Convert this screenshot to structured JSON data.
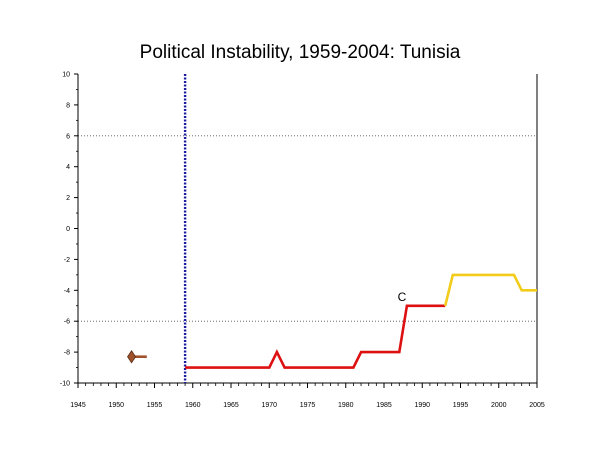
{
  "chart_data": {
    "type": "line",
    "title": "Political Instability, 1959-2004: Tunisia",
    "xlabel": "",
    "ylabel": "",
    "xlim": [
      1945,
      2005
    ],
    "ylim": [
      -10,
      10
    ],
    "x_ticks": [
      1945,
      1950,
      1955,
      1960,
      1965,
      1970,
      1975,
      1980,
      1985,
      1990,
      1995,
      2000,
      2005
    ],
    "y_ticks": [
      -10,
      -8,
      -6,
      -4,
      -2,
      0,
      2,
      4,
      6,
      8,
      10
    ],
    "reference_lines": [
      6,
      -6
    ],
    "vertical_marker": {
      "x": 1959
    },
    "series": [
      {
        "color": "#a0522d",
        "points": [
          [
            1952,
            -8.3
          ],
          [
            1954,
            -8.3
          ]
        ]
      },
      {
        "color": "#dd1111",
        "points": [
          [
            1959,
            -9
          ],
          [
            1970,
            -9
          ],
          [
            1971,
            -8
          ],
          [
            1972,
            -9
          ],
          [
            1981,
            -9
          ],
          [
            1982,
            -8
          ],
          [
            1987,
            -8
          ],
          [
            1988,
            -5
          ],
          [
            1993,
            -5
          ]
        ]
      },
      {
        "color": "#f2cc1a",
        "points": [
          [
            1993,
            -5
          ],
          [
            1994,
            -3
          ],
          [
            2002,
            -3
          ],
          [
            2003,
            -4
          ],
          [
            2005,
            -4
          ]
        ]
      }
    ],
    "marker": {
      "x": 1952,
      "y": -8.3,
      "color": "#a0522d"
    },
    "annotations": [
      {
        "text": "C",
        "x": 1988,
        "y": -5
      }
    ]
  }
}
